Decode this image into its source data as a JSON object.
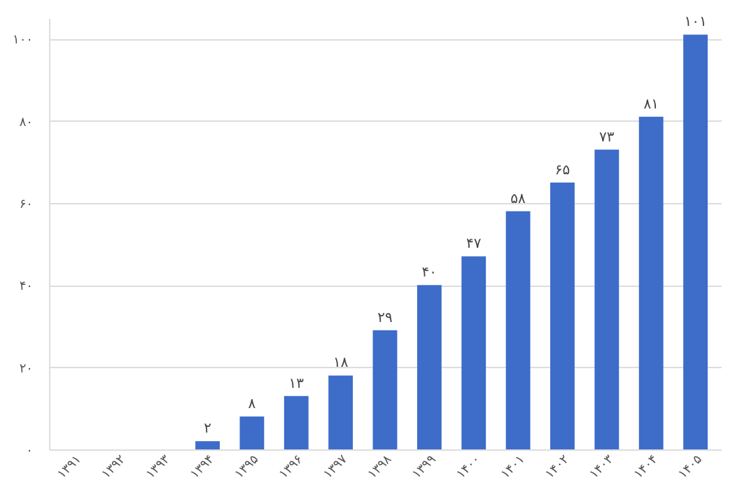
{
  "chart_data": {
    "type": "bar",
    "categories": [
      "۱۳۹۱",
      "۱۳۹۲",
      "۱۳۹۳",
      "۱۳۹۴",
      "۱۳۹۵",
      "۱۳۹۶",
      "۱۳۹۷",
      "۱۳۹۸",
      "۱۳۹۹",
      "۱۴۰۰",
      "۱۴۰۱",
      "۱۴۰۲",
      "۱۴۰۳",
      "۱۴۰۴",
      "۱۴۰۵"
    ],
    "values": [
      null,
      null,
      null,
      2,
      8,
      13,
      18,
      29,
      40,
      47,
      58,
      65,
      73,
      81,
      101
    ],
    "value_labels": [
      null,
      null,
      null,
      "۲",
      "۸",
      "۱۳",
      "۱۸",
      "۲۹",
      "۴۰",
      "۴۷",
      "۵۸",
      "۶۵",
      "۷۳",
      "۸۱",
      "۱۰۱"
    ],
    "color": "#3d6cc9",
    "ylim": [
      0,
      105
    ],
    "yticks": [
      {
        "value": 0,
        "label": "۰"
      },
      {
        "value": 20,
        "label": "۲۰"
      },
      {
        "value": 40,
        "label": "۴۰"
      },
      {
        "value": 60,
        "label": "۶۰"
      },
      {
        "value": 80,
        "label": "۸۰"
      },
      {
        "value": 100,
        "label": "۱۰۰"
      }
    ],
    "grid": "y"
  }
}
